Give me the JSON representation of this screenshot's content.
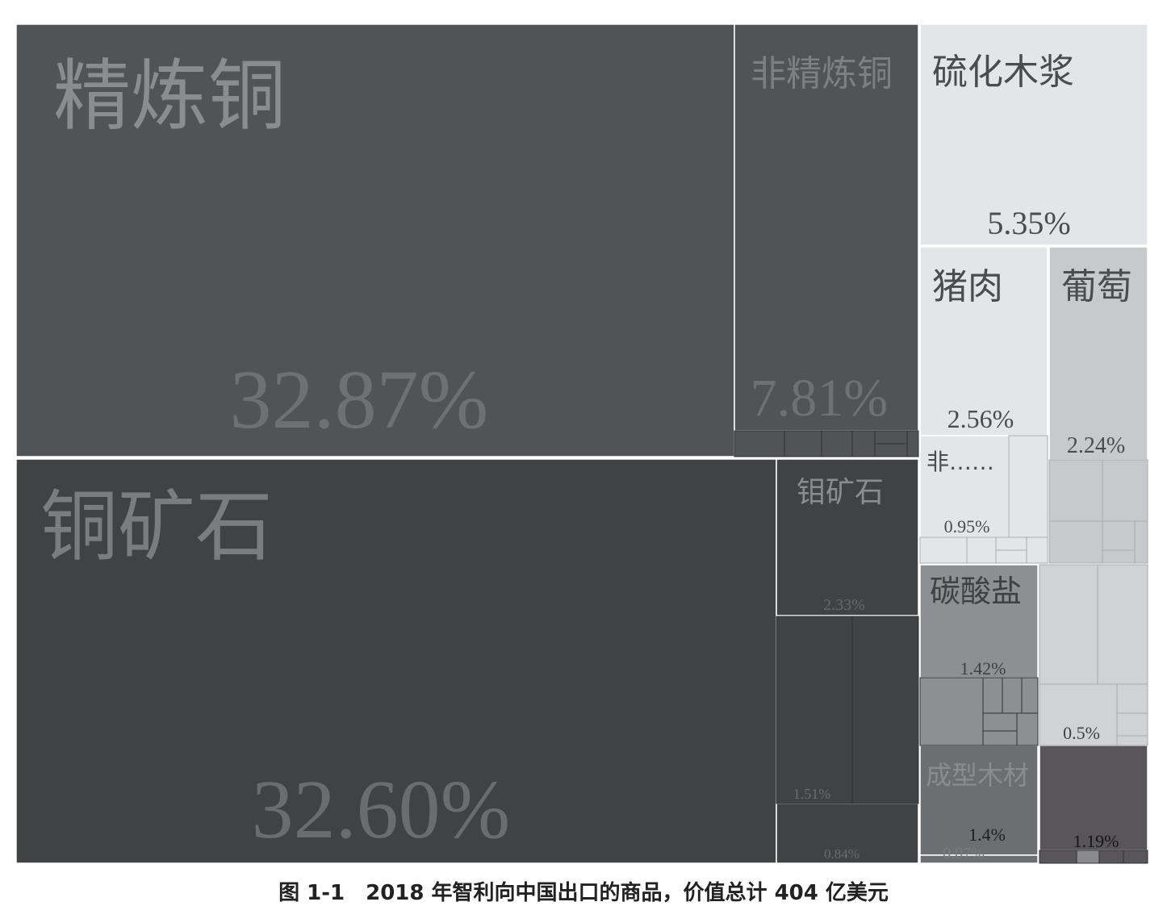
{
  "chart_data": {
    "type": "treemap",
    "unit": "%",
    "items": [
      {
        "key": "refined_copper",
        "label": "精炼铜",
        "value_label": "32.87%",
        "value": 32.87,
        "color": "#515457"
      },
      {
        "key": "unrefined_copper",
        "label": "非精炼铜",
        "value_label": "7.81%",
        "value": 7.81,
        "color": "#515457"
      },
      {
        "key": "copper_ore",
        "label": "铜矿石",
        "value_label": "32.60%",
        "value": 32.6,
        "color": "#404244"
      },
      {
        "key": "molybdenum_ore",
        "label": "钼矿石",
        "value_label": "2.33%",
        "value": 2.33,
        "color": "#404244"
      },
      {
        "key": "other_ore_1",
        "label": "",
        "value_label": "1.51%",
        "value": 1.51,
        "color": "#404244"
      },
      {
        "key": "other_ore_2",
        "label": "",
        "value_label": "0.84%",
        "value": 0.84,
        "color": "#404244"
      },
      {
        "key": "sulfate_pulp",
        "label": "硫化木浆",
        "value_label": "5.35%",
        "value": 5.35,
        "color": "#e3e5e7"
      },
      {
        "key": "pork",
        "label": "猪肉",
        "value_label": "2.56%",
        "value": 2.56,
        "color": "#e3e5e7"
      },
      {
        "key": "non_item",
        "label": "非……",
        "value_label": "0.95%",
        "value": 0.95,
        "color": "#e3e5e7"
      },
      {
        "key": "grapes",
        "label": "葡萄",
        "value_label": "2.24%",
        "value": 2.24,
        "color": "#c7c9cb"
      },
      {
        "key": "carbonate",
        "label": "碳酸盐",
        "value_label": "1.42%",
        "value": 1.42,
        "color": "#8d9093"
      },
      {
        "key": "light_misc",
        "label": "",
        "value_label": "0.5%",
        "value": 0.5,
        "color": "#d0d2d4"
      },
      {
        "key": "shaped_wood",
        "label": "成型木材",
        "value_label": "1.4%",
        "value": 1.4,
        "color": "#6c6f72"
      },
      {
        "key": "small_item",
        "label": "",
        "value_label": "0.07%",
        "value": 0.07,
        "color": "#6c6f72"
      },
      {
        "key": "dark_misc",
        "label": "",
        "value_label": "1.19%",
        "value": 1.19,
        "color": "#59565a"
      }
    ]
  },
  "caption": "图 1-1　2018 年智利向中国出口的商品，价值总计 404 亿美元"
}
